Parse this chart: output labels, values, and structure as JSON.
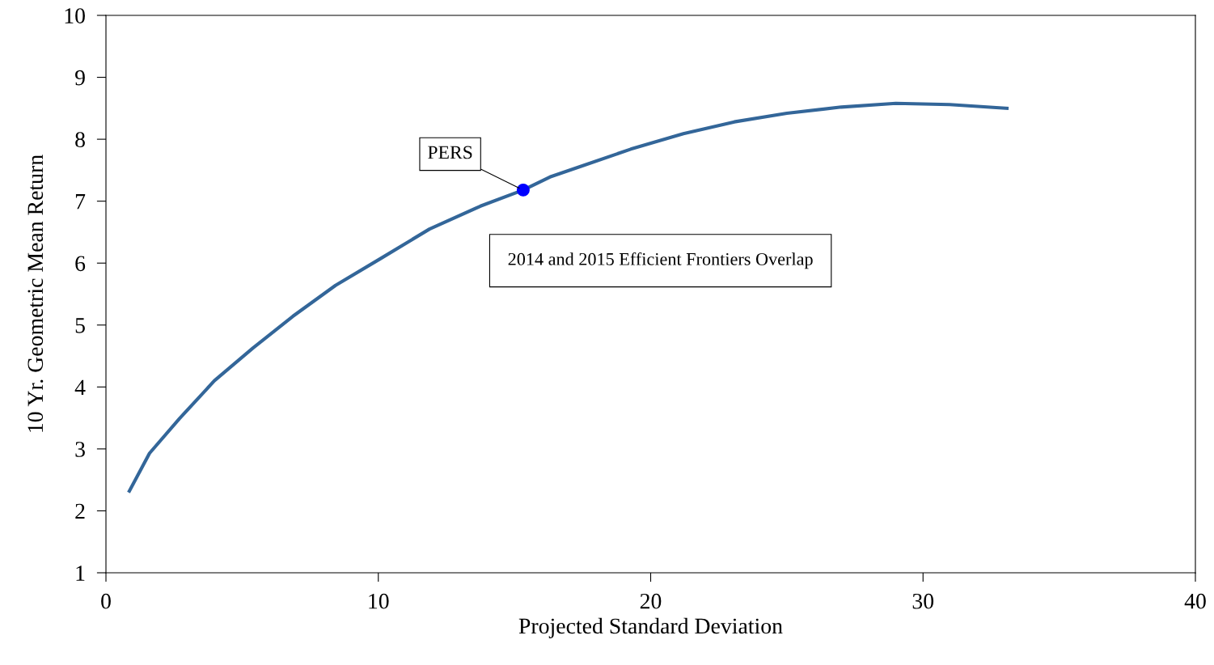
{
  "chart_data": {
    "type": "line",
    "xlabel": "Projected Standard Deviation",
    "ylabel": "10 Yr. Geometric Mean Return",
    "xlim": [
      0,
      40
    ],
    "xticks": [
      0,
      10,
      20,
      30,
      40
    ],
    "ylim": [
      1,
      10
    ],
    "yticks": [
      1,
      2,
      3,
      4,
      5,
      6,
      7,
      8,
      9,
      10
    ],
    "grid": false,
    "legend": false,
    "series": [
      {
        "color": "#336699",
        "marker": "none",
        "x": [
          0.86,
          1.6,
          2.7,
          3.98,
          5.4,
          6.86,
          8.43,
          10.07,
          11.88,
          13.75,
          15.32,
          16.3,
          17.49,
          19.27,
          21.2,
          23.07,
          25.0,
          27.0,
          29.0,
          30.98,
          33.08
        ],
        "values": [
          2.32,
          2.93,
          3.49,
          4.1,
          4.63,
          5.14,
          5.64,
          6.07,
          6.55,
          6.92,
          7.18,
          7.39,
          7.57,
          7.84,
          8.09,
          8.28,
          8.42,
          8.52,
          8.58,
          8.56,
          8.5
        ]
      },
      {
        "type": "scatter",
        "name": "PERS",
        "color": "#0000ff",
        "marker": "circle",
        "x": [
          15.32
        ],
        "values": [
          7.18
        ]
      }
    ],
    "annotations": [
      "2014 and 2015 Efficient Frontiers Overlap"
    ]
  }
}
